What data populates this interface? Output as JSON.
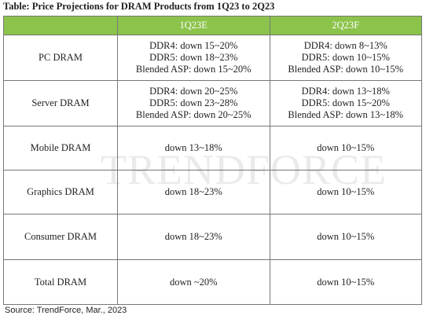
{
  "title": "Table: Price Projections for DRAM Products from 1Q23 to 2Q23",
  "watermark": "TRENDFORCE",
  "table": {
    "header": [
      "1Q23E",
      "2Q23F"
    ],
    "rows": [
      {
        "label": "PC DRAM",
        "cells": [
          [
            "DDR4: down 15~20%",
            "DDR5: down 18~23%",
            "Blended ASP: down 15~20%"
          ],
          [
            "DDR4: down 8~13%",
            "DDR5: down 10~15%",
            "Blended ASP: down 10~15%"
          ]
        ]
      },
      {
        "label": "Server DRAM",
        "cells": [
          [
            "DDR4: down 20~25%",
            "DDR5: down 23~28%",
            "Blended ASP: down 20~25%"
          ],
          [
            "DDR4: down 13~18%",
            "DDR5: down 15~20%",
            "Blended ASP: down 13~18%"
          ]
        ]
      },
      {
        "label": "Mobile DRAM",
        "cells": [
          [
            "down 13~18%"
          ],
          [
            "down 10~15%"
          ]
        ]
      },
      {
        "label": "Graphics DRAM",
        "cells": [
          [
            "down 18~23%"
          ],
          [
            "down 10~15%"
          ]
        ]
      },
      {
        "label": "Consumer DRAM",
        "cells": [
          [
            "down 18~23%"
          ],
          [
            "down 10~15%"
          ]
        ]
      },
      {
        "label": "Total DRAM",
        "cells": [
          [
            "down ~20%"
          ],
          [
            "down 10~15%"
          ]
        ]
      }
    ]
  },
  "source": "Source: TrendForce, Mar., 2023"
}
